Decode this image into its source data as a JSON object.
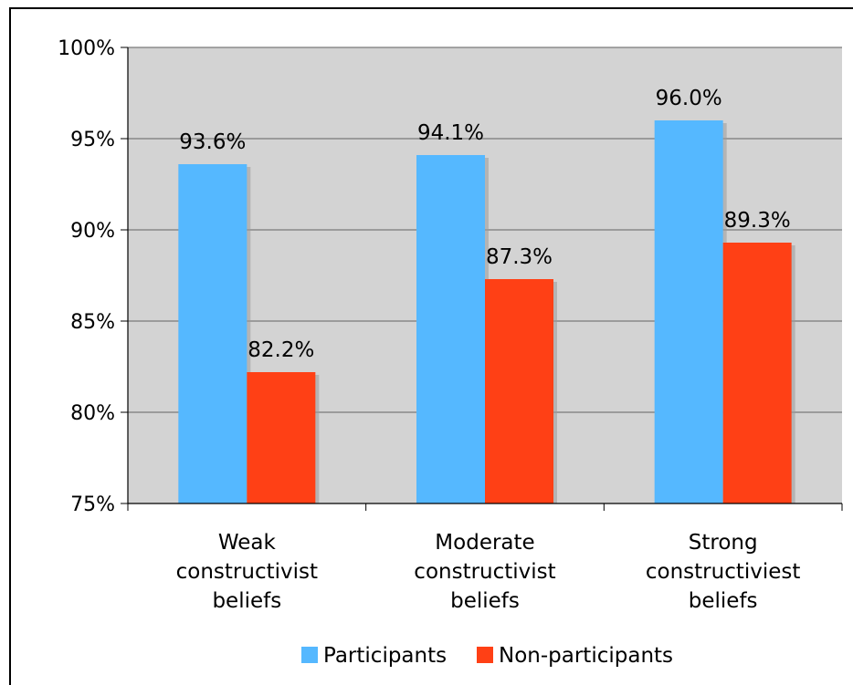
{
  "chart_data": {
    "type": "bar",
    "categories": [
      [
        "Weak",
        "constructivist",
        "beliefs"
      ],
      [
        "Moderate",
        "constructivist",
        "beliefs"
      ],
      [
        "Strong",
        "constructiviest",
        "beliefs"
      ]
    ],
    "series": [
      {
        "name": "Participants",
        "color": "#55b8ff",
        "values": [
          93.6,
          94.1,
          96.0
        ],
        "labels": [
          "93.6%",
          "94.1%",
          "96.0%"
        ]
      },
      {
        "name": "Non-participants",
        "color": "#ff4015",
        "values": [
          82.2,
          87.3,
          89.3
        ],
        "labels": [
          "82.2%",
          "87.3%",
          "89.3%"
        ]
      }
    ],
    "ylim": [
      75,
      100
    ],
    "yticks": [
      75,
      80,
      85,
      90,
      95,
      100
    ],
    "ytick_labels": [
      "75%",
      "80%",
      "85%",
      "90%",
      "95%",
      "100%"
    ],
    "grid": true,
    "plot_background": "#d3d3d3",
    "legend_position": "bottom"
  }
}
